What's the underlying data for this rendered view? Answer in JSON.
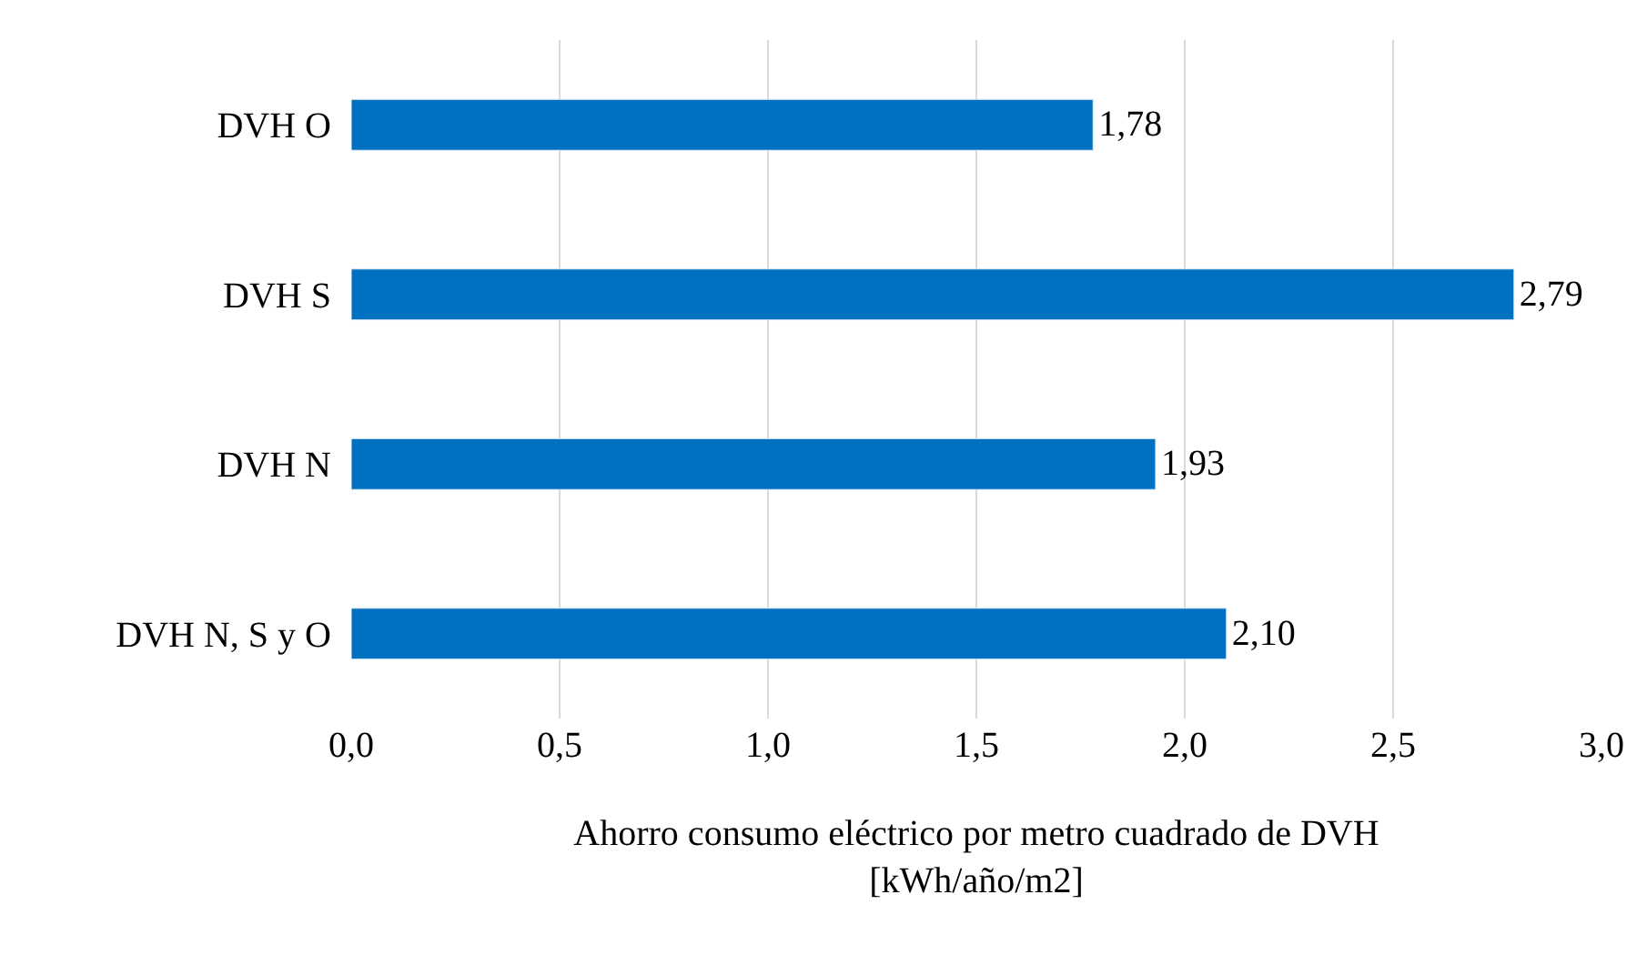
{
  "chart_data": {
    "type": "bar",
    "orientation": "horizontal",
    "categories": [
      "DVH O",
      "DVH S",
      "DVH N",
      "DVH N, S y O"
    ],
    "values": [
      1.78,
      2.79,
      1.93,
      2.1
    ],
    "value_labels": [
      "1,78",
      "2,79",
      "1,93",
      "2,10"
    ],
    "color": "#0070c0",
    "xlabel": "Ahorro consumo eléctrico por metro cuadrado de DVH\n[kWh/año/m2]",
    "xlim": [
      0,
      3
    ],
    "xticks": [
      {
        "value": 0,
        "label": "0,0"
      },
      {
        "value": 0.5,
        "label": "0,5"
      },
      {
        "value": 1,
        "label": "1,0"
      },
      {
        "value": 1.5,
        "label": "1,5"
      },
      {
        "value": 2,
        "label": "2,0"
      },
      {
        "value": 2.5,
        "label": "2,5"
      },
      {
        "value": 3,
        "label": "3,0"
      }
    ],
    "grid": "x"
  }
}
